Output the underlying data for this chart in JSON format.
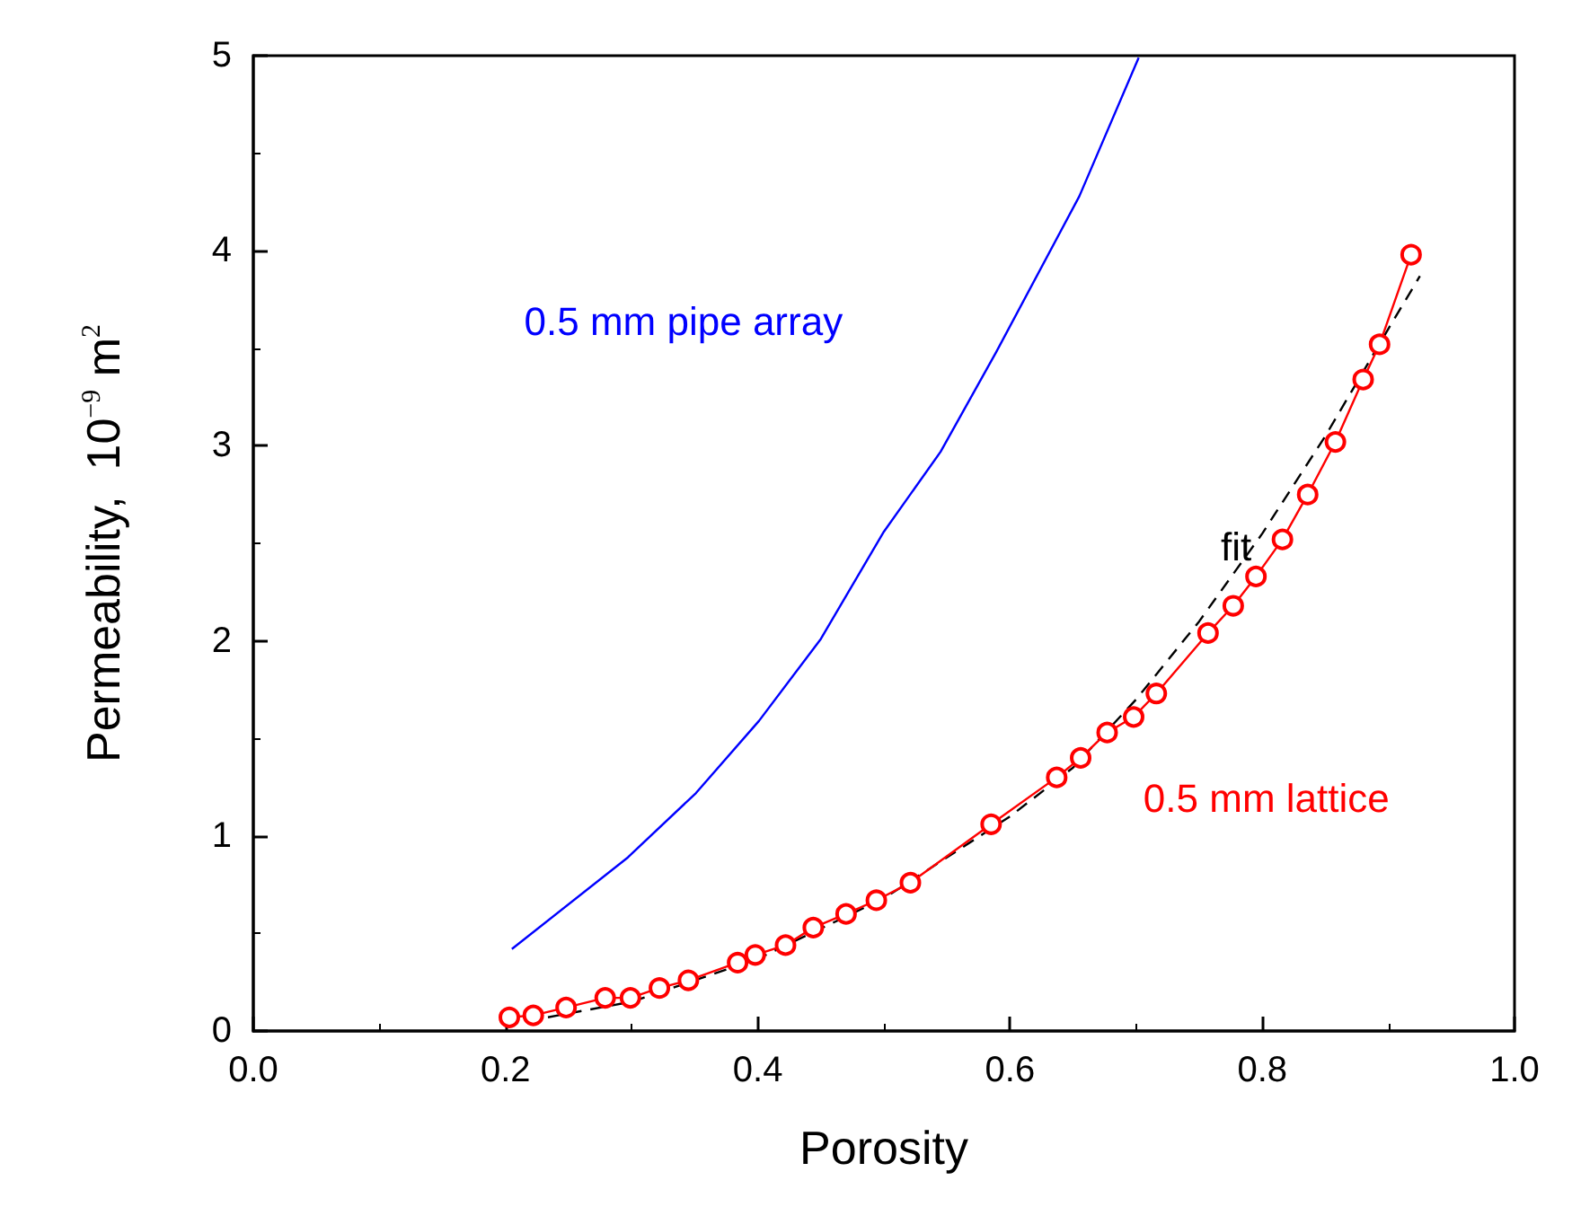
{
  "chart_data": {
    "type": "line",
    "xlabel": "Porosity",
    "ylabel": "Permeability,  10$^{−9}$ m$^{2}$",
    "xlim": [
      0,
      1
    ],
    "ylim": [
      0,
      5
    ],
    "xticks": [
      {
        "value": 0,
        "label": "0.0"
      },
      0.2,
      0.4,
      0.6,
      0.8,
      {
        "value": 1,
        "label": "1.0"
      }
    ],
    "yticks": [
      0,
      1,
      2,
      3,
      4,
      5
    ],
    "grid": false,
    "legend": false,
    "series": [
      {
        "name": "0.5 mm pipe array",
        "color": "#0000ff",
        "marker": "none",
        "line_style": "solid",
        "x": [
          0.205,
          0.297,
          0.351,
          0.401,
          0.45,
          0.5,
          0.545,
          0.589,
          0.655,
          0.702
        ],
        "values": [
          0.42,
          0.89,
          1.22,
          1.59,
          2.01,
          2.56,
          2.97,
          3.48,
          4.28,
          4.99
        ]
      },
      {
        "name": "fit",
        "color": "#000000",
        "marker": "none",
        "line_style": "dashed",
        "x": [
          0.2,
          0.3,
          0.4,
          0.5,
          0.6,
          0.65,
          0.7,
          0.75,
          0.8,
          0.85,
          0.9,
          0.925
        ],
        "values": [
          0.03,
          0.15,
          0.37,
          0.68,
          1.1,
          1.35,
          1.7,
          2.1,
          2.55,
          3.05,
          3.6,
          3.87
        ]
      },
      {
        "name": "0.5 mm lattice",
        "color": "#ff0000",
        "marker": "circle",
        "line_style": "solid",
        "x": [
          0.203,
          0.222,
          0.248,
          0.279,
          0.299,
          0.322,
          0.345,
          0.384,
          0.398,
          0.422,
          0.444,
          0.47,
          0.494,
          0.521,
          0.585,
          0.637,
          0.656,
          0.677,
          0.698,
          0.716,
          0.757,
          0.777,
          0.795,
          0.816,
          0.836,
          0.858,
          0.88,
          0.893,
          0.918
        ],
        "values": [
          0.07,
          0.08,
          0.12,
          0.17,
          0.17,
          0.22,
          0.26,
          0.35,
          0.39,
          0.44,
          0.53,
          0.6,
          0.67,
          0.76,
          1.06,
          1.3,
          1.4,
          1.53,
          1.61,
          1.73,
          2.04,
          2.18,
          2.33,
          2.52,
          2.75,
          3.02,
          3.34,
          3.52,
          3.98
        ]
      }
    ]
  }
}
